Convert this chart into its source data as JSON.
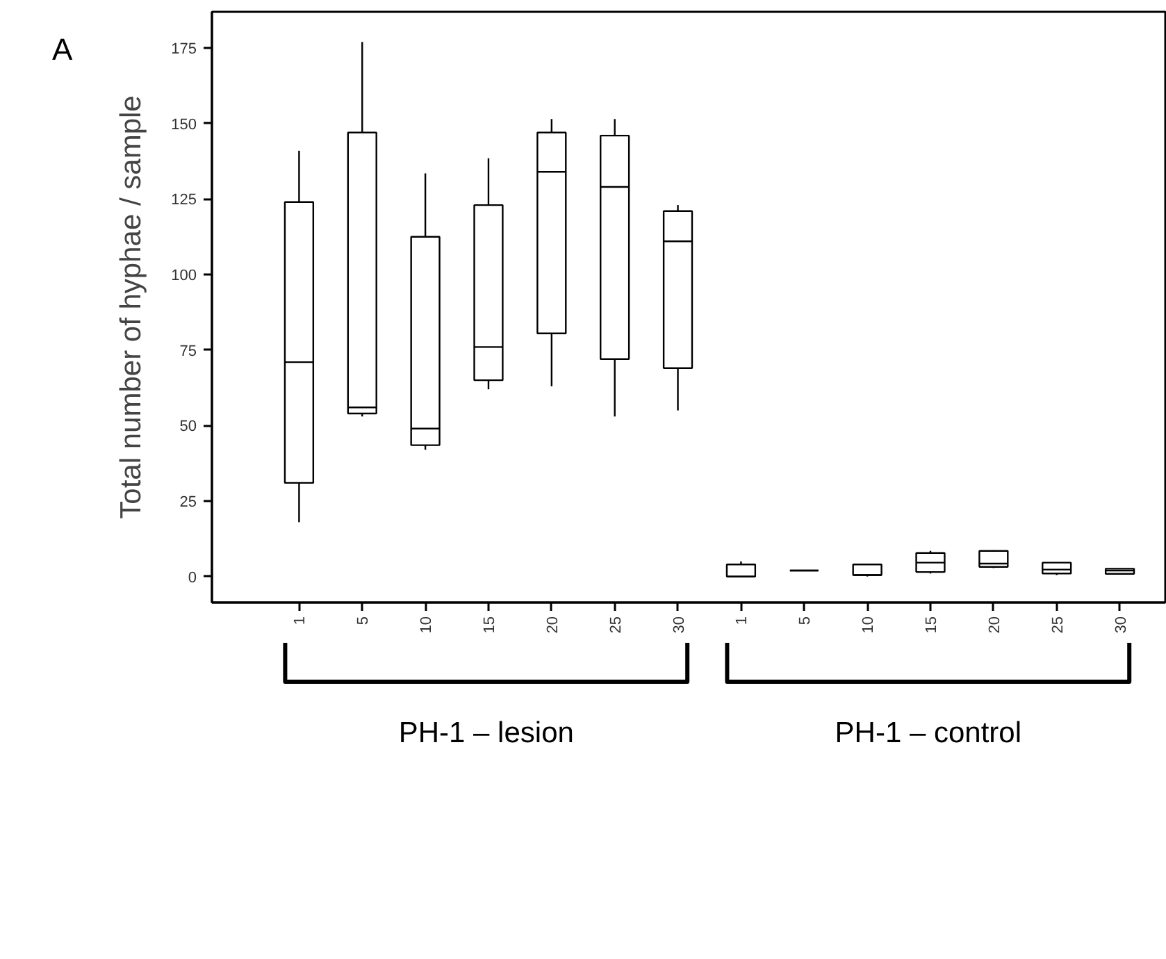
{
  "chart_data": {
    "type": "box",
    "ylabel": "Total number of hyphae / sample",
    "categories": [
      "1",
      "5",
      "10",
      "15",
      "20",
      "25",
      "30",
      "1",
      "5",
      "10",
      "15",
      "20",
      "25",
      "30"
    ],
    "boxes": [
      {
        "low": 18,
        "q1": 31,
        "median": 71,
        "q3": 124,
        "high": 141
      },
      {
        "low": 53,
        "q1": 54,
        "median": 56,
        "q3": 147,
        "high": 177
      },
      {
        "low": 42,
        "q1": 43.5,
        "median": 49,
        "q3": 112.5,
        "high": 133.5
      },
      {
        "low": 62,
        "q1": 65,
        "median": 76,
        "q3": 123,
        "high": 138.5
      },
      {
        "low": 63,
        "q1": 80.5,
        "median": 134,
        "q3": 147,
        "high": 151.5
      },
      {
        "low": 53,
        "q1": 72,
        "median": 129,
        "q3": 146,
        "high": 151.5
      },
      {
        "low": 55,
        "q1": 69,
        "median": 111,
        "q3": 121,
        "high": 123
      },
      {
        "low": 0,
        "q1": 0,
        "median": 0,
        "q3": 4,
        "high": 5
      },
      {
        "low": 2,
        "q1": 2,
        "median": 2,
        "q3": 2,
        "high": 2
      },
      {
        "low": 0,
        "q1": 0.5,
        "median": 0.5,
        "q3": 4,
        "high": 4
      },
      {
        "low": 1,
        "q1": 1.5,
        "median": 4.6,
        "q3": 7.8,
        "high": 8.5
      },
      {
        "low": 2.8,
        "q1": 3.2,
        "median": 4.3,
        "q3": 8.5,
        "high": 8.7
      },
      {
        "low": 0.5,
        "q1": 1,
        "median": 2.3,
        "q3": 4.6,
        "high": 4.6
      },
      {
        "low": 0.9,
        "q1": 0.9,
        "median": 2,
        "q3": 2.6,
        "high": 2.6
      }
    ],
    "ylim": [
      -8.6,
      187
    ],
    "yticks": [
      0,
      25,
      50,
      75,
      100,
      125,
      150,
      175
    ],
    "annotations": [
      "A",
      "PH-1 – lesion",
      "PH-1 – control"
    ]
  }
}
